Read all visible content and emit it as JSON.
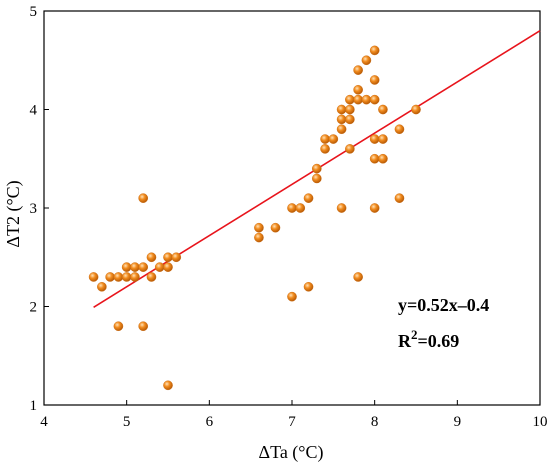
{
  "chart_data": {
    "type": "scatter",
    "xlabel": "ΔTa (°C)",
    "ylabel": "ΔT2 (°C)",
    "xlim": [
      4,
      10
    ],
    "ylim": [
      1,
      5
    ],
    "xticks": [
      4,
      5,
      6,
      7,
      8,
      9,
      10
    ],
    "yticks": [
      1,
      2,
      3,
      4,
      5
    ],
    "grid": false,
    "legend": "none",
    "point_color": "#f28c1e",
    "line_color": "#e8141c",
    "points": [
      [
        4.6,
        2.3
      ],
      [
        4.7,
        2.2
      ],
      [
        4.8,
        2.3
      ],
      [
        4.9,
        2.3
      ],
      [
        4.9,
        1.8
      ],
      [
        5.0,
        2.4
      ],
      [
        5.0,
        2.3
      ],
      [
        5.1,
        2.4
      ],
      [
        5.1,
        2.3
      ],
      [
        5.2,
        2.4
      ],
      [
        5.2,
        3.1
      ],
      [
        5.2,
        1.8
      ],
      [
        5.3,
        2.5
      ],
      [
        5.3,
        2.3
      ],
      [
        5.4,
        2.4
      ],
      [
        5.5,
        2.4
      ],
      [
        5.5,
        2.5
      ],
      [
        5.5,
        1.2
      ],
      [
        5.6,
        2.5
      ],
      [
        6.6,
        2.8
      ],
      [
        6.6,
        2.7
      ],
      [
        6.8,
        2.8
      ],
      [
        7.0,
        3.0
      ],
      [
        7.0,
        2.1
      ],
      [
        7.1,
        3.0
      ],
      [
        7.2,
        3.1
      ],
      [
        7.2,
        2.2
      ],
      [
        7.3,
        3.4
      ],
      [
        7.3,
        3.3
      ],
      [
        7.4,
        3.7
      ],
      [
        7.4,
        3.6
      ],
      [
        7.5,
        3.7
      ],
      [
        7.6,
        4.0
      ],
      [
        7.6,
        3.9
      ],
      [
        7.6,
        3.8
      ],
      [
        7.6,
        3.0
      ],
      [
        7.7,
        4.1
      ],
      [
        7.7,
        4.0
      ],
      [
        7.7,
        3.9
      ],
      [
        7.7,
        3.6
      ],
      [
        7.8,
        4.4
      ],
      [
        7.8,
        4.2
      ],
      [
        7.8,
        4.1
      ],
      [
        7.8,
        2.3
      ],
      [
        7.9,
        4.5
      ],
      [
        7.9,
        4.1
      ],
      [
        8.0,
        4.6
      ],
      [
        8.0,
        4.3
      ],
      [
        8.0,
        4.1
      ],
      [
        8.0,
        3.7
      ],
      [
        8.0,
        3.5
      ],
      [
        8.0,
        3.0
      ],
      [
        8.1,
        4.0
      ],
      [
        8.1,
        3.7
      ],
      [
        8.1,
        3.5
      ],
      [
        8.3,
        3.8
      ],
      [
        8.3,
        3.1
      ],
      [
        8.5,
        4.0
      ]
    ],
    "fit": {
      "slope": 0.52,
      "intercept": -0.4,
      "x_range": [
        4.6,
        10.0
      ]
    },
    "annotations": {
      "equation": "y=0.52x–0.4",
      "r2_prefix": "R",
      "r2_sup": "2",
      "r2_value": "=0.69"
    }
  }
}
